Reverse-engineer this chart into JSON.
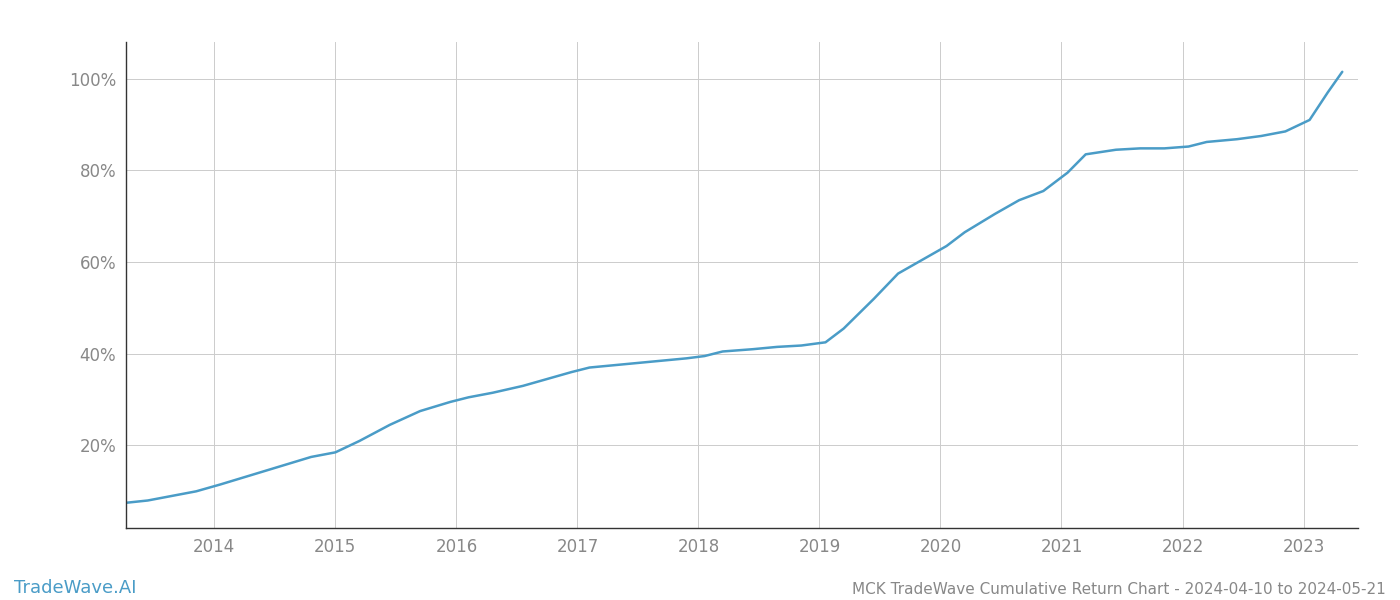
{
  "title": "MCK TradeWave Cumulative Return Chart - 2024-04-10 to 2024-05-21",
  "watermark": "TradeWave.AI",
  "line_color": "#4a9cc7",
  "background_color": "#ffffff",
  "grid_color": "#cccccc",
  "x_years": [
    2014,
    2015,
    2016,
    2017,
    2018,
    2019,
    2020,
    2021,
    2022,
    2023
  ],
  "y_ticks": [
    0.2,
    0.4,
    0.6,
    0.8,
    1.0
  ],
  "y_tick_labels": [
    "20%",
    "40%",
    "60%",
    "80%",
    "100%"
  ],
  "data_x": [
    2013.27,
    2013.45,
    2013.65,
    2013.85,
    2014.05,
    2014.3,
    2014.55,
    2014.8,
    2015.0,
    2015.2,
    2015.45,
    2015.7,
    2015.95,
    2016.1,
    2016.3,
    2016.55,
    2016.75,
    2016.95,
    2017.1,
    2017.3,
    2017.5,
    2017.7,
    2017.9,
    2018.05,
    2018.2,
    2018.45,
    2018.65,
    2018.85,
    2019.05,
    2019.2,
    2019.45,
    2019.65,
    2019.85,
    2020.05,
    2020.2,
    2020.45,
    2020.65,
    2020.85,
    2021.05,
    2021.2,
    2021.45,
    2021.65,
    2021.85,
    2022.05,
    2022.2,
    2022.45,
    2022.65,
    2022.85,
    2023.05,
    2023.2,
    2023.32
  ],
  "data_y": [
    0.075,
    0.08,
    0.09,
    0.1,
    0.115,
    0.135,
    0.155,
    0.175,
    0.185,
    0.21,
    0.245,
    0.275,
    0.295,
    0.305,
    0.315,
    0.33,
    0.345,
    0.36,
    0.37,
    0.375,
    0.38,
    0.385,
    0.39,
    0.395,
    0.405,
    0.41,
    0.415,
    0.418,
    0.425,
    0.455,
    0.52,
    0.575,
    0.605,
    0.635,
    0.665,
    0.705,
    0.735,
    0.755,
    0.795,
    0.835,
    0.845,
    0.848,
    0.848,
    0.852,
    0.862,
    0.868,
    0.875,
    0.885,
    0.91,
    0.97,
    1.015
  ],
  "xlim": [
    2013.27,
    2023.45
  ],
  "ylim": [
    0.02,
    1.08
  ],
  "title_fontsize": 11,
  "tick_fontsize": 12,
  "watermark_fontsize": 13,
  "line_width": 1.8,
  "spine_color": "#333333",
  "tick_color": "#888888"
}
